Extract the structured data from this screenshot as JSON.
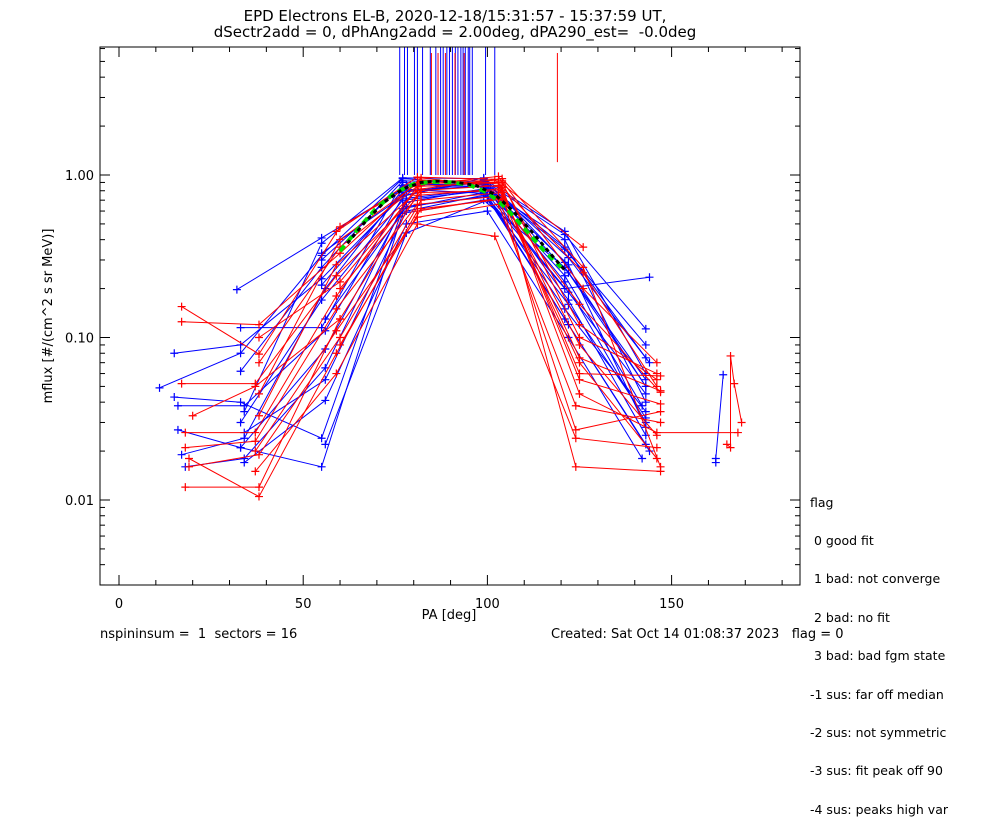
{
  "chart_data": {
    "type": "scatter",
    "title_line1": "EPD Electrons EL-B, 2020-12-18/15:31:57 - 15:37:59 UT,",
    "title_line2": "dSectr2add = 0, dPhAng2add = 2.00deg, dPA290_est=  -0.0deg",
    "xlabel": "PA [deg]",
    "ylabel": "mflux [#/(cm^2 s sr MeV)]",
    "xlim": [
      -5,
      185
    ],
    "ylim": [
      0.003,
      5.5
    ],
    "yscale": "log",
    "x_ticks": [
      0,
      50,
      100,
      150
    ],
    "x_tick_labels": [
      "0",
      "50",
      "100",
      "150"
    ],
    "y_ticks": [
      0.01,
      0.1,
      1.0
    ],
    "y_tick_labels": [
      "0.01",
      "0.10",
      "1.00"
    ],
    "colors": {
      "series_a": "#0000ff",
      "series_b": "#ff0000",
      "fit_green": "#00e000",
      "fit_black": "#000000"
    },
    "series": [
      {
        "color": "#0000ff",
        "lines": [
          [
            [
              11,
              0.049
            ],
            [
              33,
              0.08
            ],
            [
              55,
              0.32
            ],
            [
              77,
              0.95
            ],
            [
              99,
              0.88
            ],
            [
              121,
              0.35
            ],
            [
              143,
              0.09
            ]
          ],
          [
            [
              16,
              0.027
            ],
            [
              33,
              0.021
            ],
            [
              55,
              0.016
            ],
            [
              77,
              0.58
            ],
            [
              99,
              0.7
            ],
            [
              121,
              0.27
            ],
            [
              143,
              0.055
            ]
          ],
          [
            [
              15,
              0.08
            ],
            [
              33,
              0.09
            ],
            [
              55,
              0.23
            ],
            [
              77,
              0.75
            ],
            [
              99,
              0.93
            ],
            [
              121,
              0.43
            ],
            [
              143,
              0.113
            ]
          ],
          [
            [
              32,
              0.197
            ],
            [
              55,
              0.41
            ],
            [
              77,
              0.82
            ],
            [
              99,
              0.77
            ],
            [
              121,
              0.2
            ],
            [
              144,
              0.235
            ]
          ],
          [
            [
              33,
              0.115
            ],
            [
              55,
              0.115
            ],
            [
              77,
              0.9
            ],
            [
              99,
              0.84
            ],
            [
              121,
              0.4
            ],
            [
              143,
              0.04
            ]
          ],
          [
            [
              15,
              0.043
            ],
            [
              33,
              0.04
            ],
            [
              55,
              0.024
            ],
            [
              77,
              0.62
            ],
            [
              99,
              0.78
            ],
            [
              121,
              0.13
            ],
            [
              143,
              0.022
            ]
          ],
          [
            [
              18,
              0.016
            ],
            [
              34,
              0.018
            ],
            [
              56,
              0.065
            ],
            [
              78,
              0.72
            ],
            [
              100,
              0.82
            ],
            [
              122,
              0.17
            ],
            [
              143,
              0.025
            ]
          ],
          [
            [
              16,
              0.038
            ],
            [
              34,
              0.038
            ],
            [
              56,
              0.11
            ],
            [
              78,
              0.8
            ],
            [
              100,
              0.86
            ],
            [
              122,
              0.25
            ],
            [
              143,
              0.05
            ]
          ],
          [
            [
              17,
              0.019
            ],
            [
              34,
              0.024
            ],
            [
              56,
              0.2
            ],
            [
              78,
              0.87
            ],
            [
              100,
              0.88
            ],
            [
              122,
              0.31
            ],
            [
              144,
              0.07
            ]
          ],
          [
            [
              33,
              0.062
            ],
            [
              55,
              0.27
            ],
            [
              77,
              0.92
            ],
            [
              99,
              0.9
            ],
            [
              121,
              0.22
            ],
            [
              143,
              0.03
            ]
          ],
          [
            [
              34,
              0.017
            ],
            [
              56,
              0.041
            ],
            [
              78,
              0.5
            ],
            [
              100,
              0.6
            ],
            [
              122,
              0.1
            ],
            [
              142,
              0.018
            ]
          ],
          [
            [
              33,
              0.03
            ],
            [
              55,
              0.17
            ],
            [
              77,
              0.7
            ],
            [
              99,
              0.8
            ],
            [
              121,
              0.15
            ],
            [
              143,
              0.035
            ]
          ],
          [
            [
              34,
              0.026
            ],
            [
              56,
              0.055
            ],
            [
              78,
              0.6
            ],
            [
              100,
              0.76
            ],
            [
              122,
              0.19
            ],
            [
              143,
              0.045
            ]
          ],
          [
            [
              34,
              0.035
            ],
            [
              55,
              0.38
            ],
            [
              77,
              0.96
            ],
            [
              99,
              0.95
            ],
            [
              121,
              0.45
            ],
            [
              143,
              0.06
            ]
          ],
          [
            [
              33,
              0.021
            ],
            [
              56,
              0.085
            ],
            [
              78,
              0.68
            ],
            [
              100,
              0.83
            ],
            [
              122,
              0.28
            ],
            [
              143,
              0.028
            ]
          ],
          [
            [
              55,
              0.21
            ],
            [
              77,
              0.78
            ],
            [
              99,
              0.91
            ],
            [
              121,
              0.36
            ],
            [
              143,
              0.075
            ]
          ],
          [
            [
              56,
              0.13
            ],
            [
              78,
              0.64
            ],
            [
              100,
              0.74
            ],
            [
              122,
              0.12
            ],
            [
              144,
              0.02
            ]
          ],
          [
            [
              55,
              0.3
            ],
            [
              77,
              0.86
            ],
            [
              99,
              0.85
            ],
            [
              121,
              0.24
            ],
            [
              142,
              0.038
            ]
          ],
          [
            [
              56,
              0.022
            ],
            [
              78,
              0.44
            ],
            [
              100,
              0.7
            ],
            [
              122,
              0.16
            ],
            [
              143,
              0.032
            ]
          ],
          [
            [
              55,
              0.33
            ],
            [
              77,
              0.74
            ],
            [
              99,
              0.96
            ],
            [
              121,
              0.29
            ],
            [
              143,
              0.05
            ]
          ],
          [
            [
              162,
              0.017
            ],
            [
              162,
              0.018
            ],
            [
              164,
              0.059
            ]
          ]
        ]
      },
      {
        "color": "#ff0000",
        "lines": [
          [
            [
              17,
              0.155
            ],
            [
              38,
              0.079
            ],
            [
              60,
              0.48
            ],
            [
              82,
              0.93
            ],
            [
              104,
              0.88
            ],
            [
              126,
              0.36
            ]
          ],
          [
            [
              18,
              0.012
            ],
            [
              38,
              0.012
            ],
            [
              60,
              0.13
            ],
            [
              82,
              0.82
            ],
            [
              104,
              0.95
            ],
            [
              126,
              0.27
            ],
            [
              147,
              0.016
            ]
          ],
          [
            [
              17,
              0.052
            ],
            [
              37,
              0.052
            ],
            [
              59,
              0.24
            ],
            [
              81,
              0.75
            ],
            [
              103,
              0.82
            ],
            [
              125,
              0.09
            ],
            [
              146,
              0.025
            ]
          ],
          [
            [
              19,
              0.018
            ],
            [
              38,
              0.0105
            ],
            [
              59,
              0.08
            ],
            [
              81,
              0.6
            ],
            [
              103,
              0.72
            ],
            [
              125,
              0.16
            ],
            [
              147,
              0.046
            ]
          ],
          [
            [
              18,
              0.026
            ],
            [
              37,
              0.026
            ],
            [
              59,
              0.18
            ],
            [
              81,
              0.85
            ],
            [
              103,
              0.9
            ],
            [
              125,
              0.06
            ],
            [
              147,
              0.058
            ]
          ],
          [
            [
              19,
              0.016
            ],
            [
              38,
              0.019
            ],
            [
              60,
              0.1
            ],
            [
              82,
              0.7
            ],
            [
              104,
              0.78
            ],
            [
              124,
              0.016
            ],
            [
              147,
              0.015
            ]
          ],
          [
            [
              17,
              0.125
            ],
            [
              38,
              0.12
            ],
            [
              60,
              0.33
            ],
            [
              82,
              0.96
            ],
            [
              104,
              0.84
            ],
            [
              125,
              0.045
            ],
            [
              146,
              0.026
            ],
            [
              168,
              0.026
            ]
          ],
          [
            [
              18,
              0.021
            ],
            [
              37,
              0.023
            ],
            [
              59,
              0.15
            ],
            [
              81,
              0.66
            ],
            [
              103,
              0.74
            ],
            [
              124,
              0.027
            ],
            [
              147,
              0.035
            ]
          ],
          [
            [
              38,
              0.1
            ],
            [
              60,
              0.22
            ],
            [
              82,
              0.87
            ],
            [
              103,
              0.98
            ],
            [
              125,
              0.12
            ],
            [
              146,
              0.055
            ]
          ],
          [
            [
              37,
              0.015
            ],
            [
              59,
              0.06
            ],
            [
              81,
              0.5
            ],
            [
              102,
              0.42
            ],
            [
              124,
              0.024
            ],
            [
              146,
              0.021
            ]
          ],
          [
            [
              38,
              0.045
            ],
            [
              60,
              0.4
            ],
            [
              82,
              0.92
            ],
            [
              104,
              0.92
            ],
            [
              126,
              0.2
            ],
            [
              146,
              0.07
            ]
          ],
          [
            [
              38,
              0.033
            ],
            [
              59,
              0.28
            ],
            [
              81,
              0.8
            ],
            [
              103,
              0.86
            ],
            [
              125,
              0.075
            ],
            [
              147,
              0.047
            ]
          ],
          [
            [
              37,
              0.02
            ],
            [
              59,
              0.11
            ],
            [
              81,
              0.55
            ],
            [
              103,
              0.66
            ],
            [
              124,
              0.038
            ],
            [
              147,
              0.03
            ]
          ],
          [
            [
              38,
              0.07
            ],
            [
              60,
              0.36
            ],
            [
              82,
              0.89
            ],
            [
              104,
              0.9
            ],
            [
              125,
              0.1
            ],
            [
              146,
              0.06
            ]
          ],
          [
            [
              60,
              0.2
            ],
            [
              82,
              0.78
            ],
            [
              104,
              0.8
            ],
            [
              125,
              0.055
            ],
            [
              147,
              0.039
            ]
          ],
          [
            [
              60,
              0.09
            ],
            [
              82,
              0.62
            ],
            [
              104,
              0.71
            ],
            [
              125,
              0.07
            ],
            [
              146,
              0.018
            ]
          ],
          [
            [
              59,
              0.45
            ],
            [
              81,
              0.97
            ],
            [
              102,
              0.94
            ],
            [
              126,
              0.25
            ],
            [
              146,
              0.05
            ]
          ],
          [
            [
              165,
              0.022
            ],
            [
              166,
              0.021
            ],
            [
              166,
              0.077
            ],
            [
              167,
              0.052
            ],
            [
              169,
              0.03
            ]
          ],
          [
            [
              20,
              0.033
            ],
            [
              37,
              0.05
            ],
            [
              60,
              0.13
            ]
          ]
        ]
      },
      {
        "color": "#00e000",
        "name": "",
        "fit": true,
        "x": [
          60,
          65,
          70,
          75,
          80,
          85,
          90,
          95,
          100,
          105,
          110,
          115,
          120
        ],
        "y": [
          0.34,
          0.47,
          0.63,
          0.78,
          0.88,
          0.91,
          0.9,
          0.87,
          0.78,
          0.63,
          0.47,
          0.35,
          0.27
        ]
      },
      {
        "color": "#000000",
        "name": "",
        "fit": true,
        "x": [
          62,
          67,
          72,
          77,
          82,
          87,
          92,
          97,
          102,
          107,
          112,
          117,
          121
        ],
        "y": [
          0.38,
          0.52,
          0.68,
          0.82,
          0.9,
          0.92,
          0.9,
          0.86,
          0.76,
          0.6,
          0.45,
          0.33,
          0.26
        ]
      }
    ],
    "vertical_markers": {
      "blue": [
        76.2,
        77.5,
        78.3,
        80.2,
        81,
        82.4,
        84.5,
        86,
        87.3,
        88,
        89,
        89.7,
        90.5,
        91.3,
        92,
        92.8,
        93.4,
        94,
        94.8,
        95.2,
        95.9,
        99.5,
        102
      ],
      "red": [
        84.8,
        86.6,
        88.6,
        91.2,
        93.7,
        119
      ],
      "short_red_top": 119,
      "blue_top": "above-plot",
      "red_short_bottom": 1.2
    }
  },
  "legend": {
    "title": "flag",
    "items": [
      " 0 good fit",
      " 1 bad: not converge",
      " 2 bad: no fit",
      " 3 bad: bad fgm state",
      "-1 sus: far off median",
      "-2 sus: not symmetric",
      "-3 sus: fit peak off 90",
      "-4 sus: peaks high var"
    ]
  },
  "footer": {
    "left": "nspininsum =  1  sectors = 16",
    "right": "Created: Sat Oct 14 01:08:37 2023   flag = 0"
  }
}
